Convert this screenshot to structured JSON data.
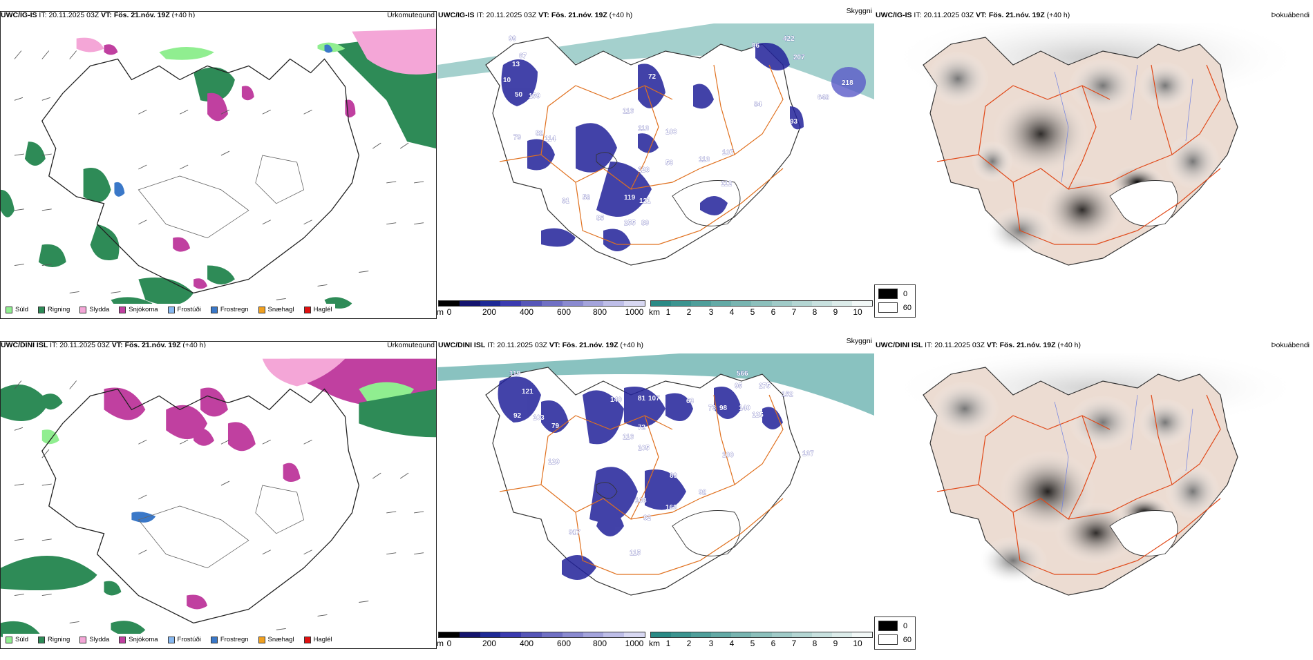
{
  "rows": [
    {
      "model": "UWC/IG-IS",
      "it_label": "IT:",
      "it_value": "20.11.2025 03Z",
      "vt_label": "VT:",
      "vt_value": "Fös. 21.nóv. 19Z",
      "lead": "(+40 h)"
    },
    {
      "model": "UWC/DINI ISL",
      "it_label": "IT:",
      "it_value": "20.11.2025 03Z",
      "vt_label": "VT:",
      "vt_value": "Fös. 21.nóv. 19Z",
      "lead": "(+40 h)"
    }
  ],
  "panel_titles": {
    "precip_type": "Úrkomutegund",
    "visibility": "Skyggni",
    "fog": "Þokuábendi"
  },
  "precip_legend": [
    {
      "label": "Súld",
      "color": "#90ee90"
    },
    {
      "label": "Rigning",
      "color": "#2e8b57"
    },
    {
      "label": "Slydda",
      "color": "#f4a6d7"
    },
    {
      "label": "Snjókoma",
      "color": "#c040a0"
    },
    {
      "label": "Frostúði",
      "color": "#87b8f0"
    },
    {
      "label": "Frostregn",
      "color": "#3a78c8"
    },
    {
      "label": "Snæhagl",
      "color": "#f0a020"
    },
    {
      "label": "Haglél",
      "color": "#e01010"
    }
  ],
  "height_bar": {
    "unit": "m",
    "ticks": [
      "0",
      "200",
      "400",
      "600",
      "800",
      "1000"
    ],
    "colors": [
      "#000000",
      "#14146e",
      "#1e2a96",
      "#3b3bb0",
      "#5656b8",
      "#7070c4",
      "#8a8ad0",
      "#a4a4dc",
      "#bebee8",
      "#d8d8f2"
    ]
  },
  "vis_bar": {
    "unit": "km",
    "ticks": [
      "1",
      "2",
      "3",
      "4",
      "5",
      "6",
      "7",
      "8",
      "9",
      "10"
    ],
    "colors": [
      "#2a8a86",
      "#3b9490",
      "#4f9f9b",
      "#63aaa6",
      "#78b5b1",
      "#8cc0bc",
      "#a0cbc8",
      "#b4d6d3",
      "#c8e1df",
      "#dcecea",
      "#f2f8f7"
    ]
  },
  "fog_legend": [
    {
      "label": "0",
      "color": "#000000"
    },
    {
      "label": "60",
      "color": "#ffffff"
    }
  ],
  "vis_labels": {
    "row0": [
      "99",
      "67",
      "13",
      "10",
      "50",
      "159",
      "82",
      "79",
      "114",
      "72",
      "116",
      "113",
      "103",
      "128",
      "53",
      "113",
      "81",
      "58",
      "119",
      "121",
      "89",
      "255",
      "85",
      "96",
      "422",
      "207",
      "218",
      "648",
      "93",
      "107",
      "84",
      "112"
    ],
    "row1": [
      "119",
      "121",
      "92",
      "103",
      "79",
      "140",
      "81",
      "107",
      "63",
      "73",
      "98",
      "95",
      "275",
      "152",
      "566",
      "140",
      "125",
      "72",
      "116",
      "105",
      "129",
      "103",
      "89",
      "92",
      "82",
      "163",
      "917",
      "115",
      "100",
      "137"
    ]
  }
}
